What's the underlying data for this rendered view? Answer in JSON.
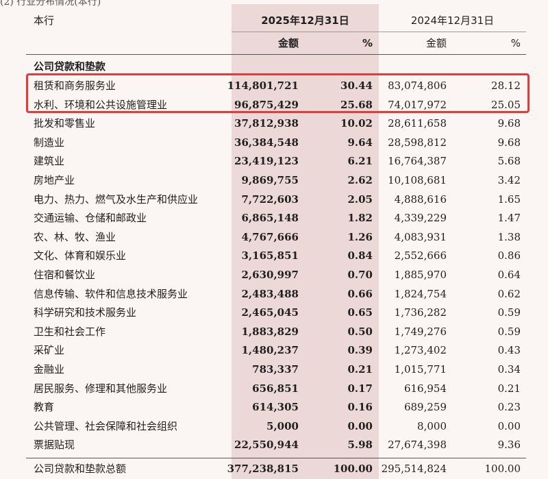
{
  "top_cut_text": "(2) 行业分布情况(本行)",
  "header": {
    "entity": "本行",
    "period_current": "2025年12月31日",
    "period_prior": "2024年12月31日",
    "col_amount": "金额",
    "col_pct": "%"
  },
  "section_title": "公司贷款和垫款",
  "rows": [
    {
      "industry": "租赁和商务服务业",
      "amount_2025": "114,801,721",
      "pct_2025": "30.44",
      "amount_2024": "83,074,806",
      "pct_2024": "28.12"
    },
    {
      "industry": "水利、环境和公共设施管理业",
      "amount_2025": "96,875,429",
      "pct_2025": "25.68",
      "amount_2024": "74,017,972",
      "pct_2024": "25.05"
    },
    {
      "industry": "批发和零售业",
      "amount_2025": "37,812,938",
      "pct_2025": "10.02",
      "amount_2024": "28,611,658",
      "pct_2024": "9.68"
    },
    {
      "industry": "制造业",
      "amount_2025": "36,384,548",
      "pct_2025": "9.64",
      "amount_2024": "28,598,812",
      "pct_2024": "9.68"
    },
    {
      "industry": "建筑业",
      "amount_2025": "23,419,123",
      "pct_2025": "6.21",
      "amount_2024": "16,764,387",
      "pct_2024": "5.68"
    },
    {
      "industry": "房地产业",
      "amount_2025": "9,869,755",
      "pct_2025": "2.62",
      "amount_2024": "10,108,681",
      "pct_2024": "3.42"
    },
    {
      "industry": "电力、热力、燃气及水生产和供应业",
      "amount_2025": "7,722,603",
      "pct_2025": "2.05",
      "amount_2024": "4,888,616",
      "pct_2024": "1.65"
    },
    {
      "industry": "交通运输、仓储和邮政业",
      "amount_2025": "6,865,148",
      "pct_2025": "1.82",
      "amount_2024": "4,339,229",
      "pct_2024": "1.47"
    },
    {
      "industry": "农、林、牧、渔业",
      "amount_2025": "4,767,666",
      "pct_2025": "1.26",
      "amount_2024": "4,083,931",
      "pct_2024": "1.38"
    },
    {
      "industry": "文化、体育和娱乐业",
      "amount_2025": "3,165,851",
      "pct_2025": "0.84",
      "amount_2024": "2,552,666",
      "pct_2024": "0.86"
    },
    {
      "industry": "住宿和餐饮业",
      "amount_2025": "2,630,997",
      "pct_2025": "0.70",
      "amount_2024": "1,885,970",
      "pct_2024": "0.64"
    },
    {
      "industry": "信息传输、软件和信息技术服务业",
      "amount_2025": "2,483,488",
      "pct_2025": "0.66",
      "amount_2024": "1,824,754",
      "pct_2024": "0.62"
    },
    {
      "industry": "科学研究和技术服务业",
      "amount_2025": "2,465,045",
      "pct_2025": "0.65",
      "amount_2024": "1,736,282",
      "pct_2024": "0.59"
    },
    {
      "industry": "卫生和社会工作",
      "amount_2025": "1,883,829",
      "pct_2025": "0.50",
      "amount_2024": "1,749,276",
      "pct_2024": "0.59"
    },
    {
      "industry": "采矿业",
      "amount_2025": "1,480,237",
      "pct_2025": "0.39",
      "amount_2024": "1,273,402",
      "pct_2024": "0.43"
    },
    {
      "industry": "金融业",
      "amount_2025": "783,337",
      "pct_2025": "0.21",
      "amount_2024": "1,015,771",
      "pct_2024": "0.34"
    },
    {
      "industry": "居民服务、修理和其他服务业",
      "amount_2025": "656,851",
      "pct_2025": "0.17",
      "amount_2024": "616,954",
      "pct_2024": "0.21"
    },
    {
      "industry": "教育",
      "amount_2025": "614,305",
      "pct_2025": "0.16",
      "amount_2024": "689,259",
      "pct_2024": "0.23"
    },
    {
      "industry": "公共管理、社会保障和社会组织",
      "amount_2025": "5,000",
      "pct_2025": "0.00",
      "amount_2024": "8,000",
      "pct_2024": "0.00"
    },
    {
      "industry": "票据贴现",
      "amount_2025": "22,550,944",
      "pct_2025": "5.98",
      "amount_2024": "27,674,398",
      "pct_2024": "9.36"
    }
  ],
  "total": {
    "industry": "公司贷款和垫款总额",
    "amount_2025": "377,238,815",
    "pct_2025": "100.00",
    "amount_2024": "295,514,824",
    "pct_2024": "100.00"
  },
  "highlight_color": "#e23b3b",
  "current_period_shade": "#ecd9d7"
}
